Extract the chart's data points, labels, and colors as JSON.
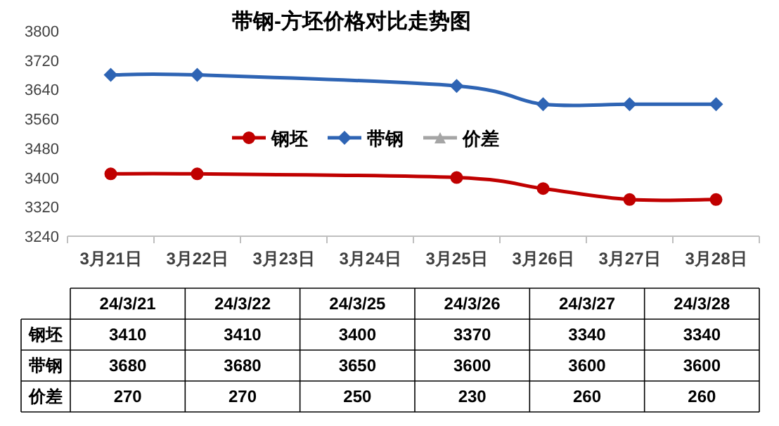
{
  "chart_data": {
    "type": "line",
    "title": "带钢-方坯价格对比走势图",
    "categories": [
      "3月21日",
      "3月22日",
      "3月23日",
      "3月24日",
      "3月25日",
      "3月26日",
      "3月27日",
      "3月28日"
    ],
    "series": [
      {
        "name": "钢坯",
        "color": "#c00000",
        "marker": "circle",
        "values": [
          3410,
          3410,
          null,
          null,
          3400,
          3370,
          3340,
          3340
        ]
      },
      {
        "name": "带钢",
        "color": "#2e64b4",
        "marker": "diamond",
        "values": [
          3680,
          3680,
          null,
          null,
          3650,
          3600,
          3600,
          3600
        ]
      },
      {
        "name": "价差",
        "color": "#a5a5a5",
        "marker": "triangle",
        "values": [
          null,
          null,
          null,
          null,
          null,
          null,
          null,
          null
        ]
      }
    ],
    "ylim": [
      3240,
      3800
    ],
    "yticks": [
      3240,
      3320,
      3400,
      3480,
      3560,
      3640,
      3720,
      3800
    ],
    "grid": false,
    "legend": "center",
    "annotations": [
      "24/3/21",
      "24/3/22",
      "24/3/25",
      "24/3/26",
      "24/3/27",
      "24/3/28",
      "3410",
      "3410",
      "3400",
      "3370",
      "3340",
      "3340",
      "3680",
      "3680",
      "3650",
      "3600",
      "3600",
      "3600",
      "270",
      "270",
      "250",
      "230",
      "260",
      "260"
    ]
  }
}
